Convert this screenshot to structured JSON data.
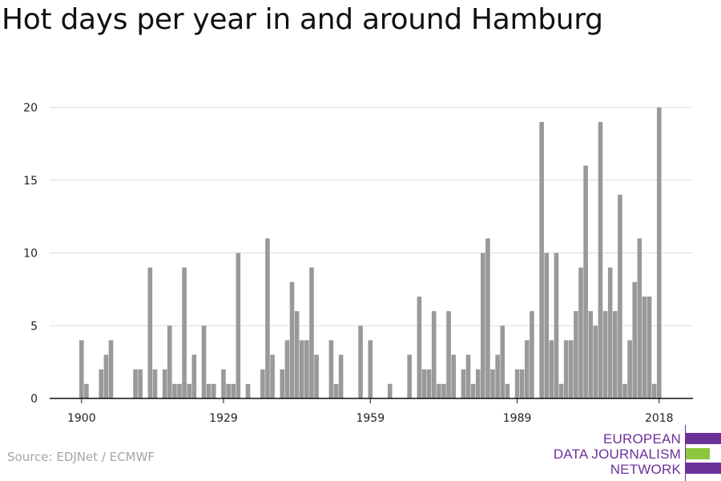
{
  "title": "Hot days per year in and around Hamburg",
  "source": "Source: EDJNet / ECMWF",
  "logo": {
    "lines": [
      "EUROPEAN",
      "DATA JOURNALISM",
      "NETWORK"
    ],
    "colors": {
      "purple": "#6c3199",
      "green": "#8dc63f"
    }
  },
  "colors": {
    "bar": "#999999",
    "grid": "#dddddd",
    "axis": "#111111"
  },
  "chart_data": {
    "type": "bar",
    "title": "Hot days per year in and around Hamburg",
    "xlabel": "",
    "ylabel": "",
    "ylim": [
      0,
      20
    ],
    "yticks": [
      0,
      5,
      10,
      15,
      20
    ],
    "xlim": [
      1900,
      2018
    ],
    "xticks": [
      1900,
      1929,
      1959,
      1989,
      2018
    ],
    "grid": true,
    "x": [
      1900,
      1901,
      1902,
      1903,
      1904,
      1905,
      1906,
      1907,
      1908,
      1909,
      1910,
      1911,
      1912,
      1913,
      1914,
      1915,
      1916,
      1917,
      1918,
      1919,
      1920,
      1921,
      1922,
      1923,
      1924,
      1925,
      1926,
      1927,
      1928,
      1929,
      1930,
      1931,
      1932,
      1933,
      1934,
      1935,
      1936,
      1937,
      1938,
      1939,
      1940,
      1941,
      1942,
      1943,
      1944,
      1945,
      1946,
      1947,
      1948,
      1949,
      1950,
      1951,
      1952,
      1953,
      1954,
      1955,
      1956,
      1957,
      1958,
      1959,
      1960,
      1961,
      1962,
      1963,
      1964,
      1965,
      1966,
      1967,
      1968,
      1969,
      1970,
      1971,
      1972,
      1973,
      1974,
      1975,
      1976,
      1977,
      1978,
      1979,
      1980,
      1981,
      1982,
      1983,
      1984,
      1985,
      1986,
      1987,
      1988,
      1989,
      1990,
      1991,
      1992,
      1993,
      1994,
      1995,
      1996,
      1997,
      1998,
      1999,
      2000,
      2001,
      2002,
      2003,
      2004,
      2005,
      2006,
      2007,
      2008,
      2009,
      2010,
      2011,
      2012,
      2013,
      2014,
      2015,
      2016,
      2017,
      2018
    ],
    "values": [
      4,
      1,
      0,
      0,
      2,
      3,
      4,
      0,
      0,
      0,
      0,
      2,
      2,
      0,
      9,
      2,
      0,
      2,
      5,
      1,
      1,
      9,
      1,
      3,
      0,
      5,
      1,
      1,
      0,
      2,
      1,
      1,
      10,
      0,
      1,
      0,
      0,
      2,
      11,
      3,
      0,
      2,
      4,
      8,
      6,
      4,
      4,
      9,
      3,
      0,
      0,
      4,
      1,
      3,
      0,
      0,
      0,
      5,
      0,
      4,
      0,
      0,
      0,
      1,
      0,
      0,
      0,
      3,
      0,
      7,
      2,
      2,
      6,
      1,
      1,
      6,
      3,
      0,
      2,
      3,
      1,
      2,
      10,
      11,
      2,
      3,
      5,
      1,
      0,
      2,
      2,
      4,
      6,
      0,
      19,
      10,
      4,
      10,
      1,
      4,
      4,
      6,
      9,
      16,
      6,
      5,
      19,
      6,
      9,
      6,
      14,
      1,
      4,
      8,
      11,
      7,
      7,
      1,
      20
    ]
  }
}
